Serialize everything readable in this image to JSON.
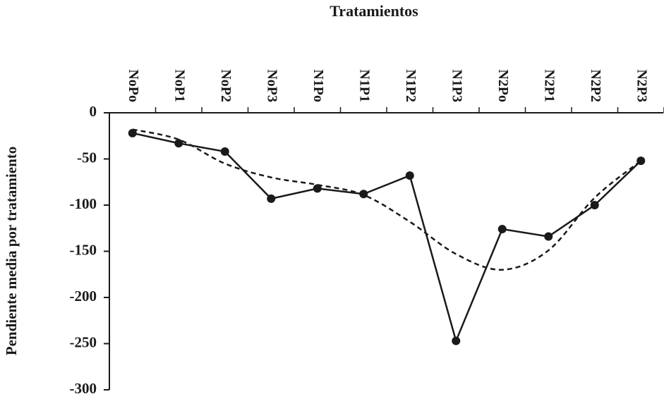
{
  "chart_data": {
    "type": "line",
    "title": "Tratamientos",
    "y_label": "Pendiente  media por  tratamiento",
    "categories": [
      "NoPo",
      "NoP1",
      "NoP2",
      "NoP3",
      "N1Po",
      "N1P1",
      "N1P2",
      "N1P3",
      "N2Po",
      "N2P1",
      "N2P2",
      "N2P3"
    ],
    "series": [
      {
        "color": "#1a1a1a",
        "marker": true,
        "dash": "solid",
        "smooth": false,
        "values": [
          -22,
          -33,
          -42,
          -93,
          -82,
          -88,
          -68,
          -247,
          -126,
          -134,
          -100,
          -52
        ]
      },
      {
        "color": "#1a1a1a",
        "marker": false,
        "dash": "dashed",
        "smooth": true,
        "values": [
          -18,
          -29,
          -55,
          -70,
          -78,
          -89,
          -118,
          -153,
          -170,
          -149,
          -92,
          -52
        ]
      }
    ],
    "ylim": [
      -300,
      0
    ],
    "yticks": [
      0,
      -50,
      -100,
      -150,
      -200,
      -250,
      -300
    ],
    "grid": false
  }
}
